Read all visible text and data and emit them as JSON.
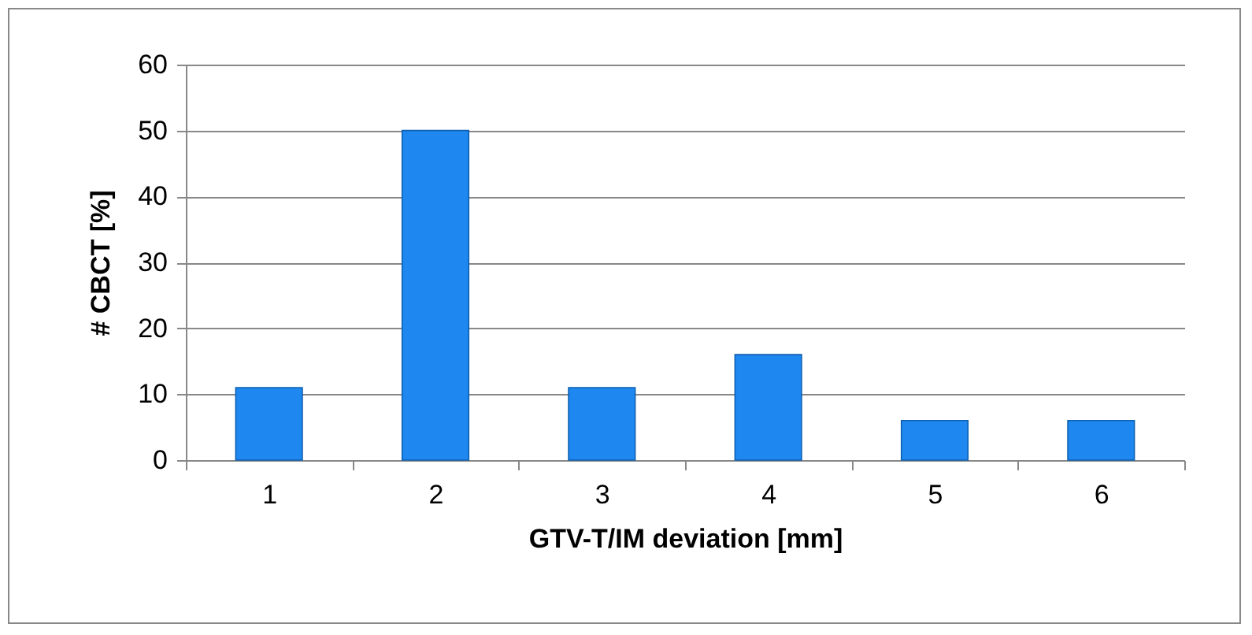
{
  "chart_data": {
    "type": "bar",
    "xlabel": "GTV-T/IM deviation [mm]",
    "ylabel": "# CBCT [%]",
    "categories": [
      "1",
      "2",
      "3",
      "4",
      "5",
      "6"
    ],
    "values": [
      11,
      50,
      11,
      16,
      6,
      6
    ],
    "color": "#1e88f0",
    "ylim": [
      0,
      60
    ],
    "yticks": [
      0,
      10,
      20,
      30,
      40,
      50,
      60
    ],
    "grid": "y"
  }
}
